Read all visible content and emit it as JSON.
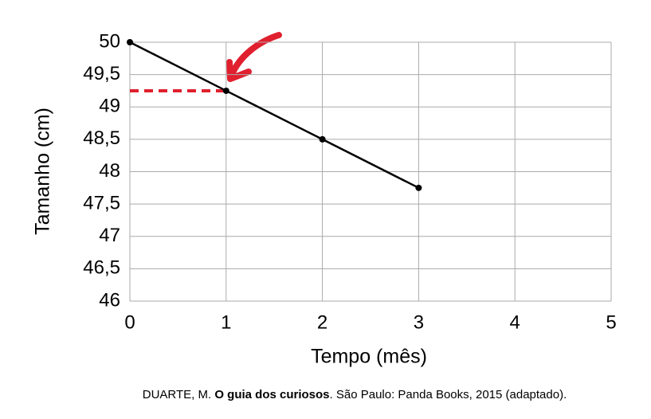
{
  "chart_data": {
    "type": "line",
    "x_label": "Tempo (mês)",
    "y_label": "Tamanho (cm)",
    "series": [
      {
        "name": "Tamanho",
        "color": "#000000",
        "x": [
          0,
          1,
          2,
          3
        ],
        "values": [
          50,
          49.25,
          48.5,
          47.75
        ]
      }
    ],
    "xlim": [
      0,
      5
    ],
    "xticks": [
      0,
      1,
      2,
      3,
      4,
      5
    ],
    "ylim": [
      46,
      50
    ],
    "yticks": [
      46,
      {
        "value": 46.5,
        "label": "46,5"
      },
      47,
      {
        "value": 47.5,
        "label": "47,5"
      },
      48,
      {
        "value": 48.5,
        "label": "48,5"
      },
      49,
      {
        "value": 49.5,
        "label": "49,5"
      },
      50
    ],
    "grid": true,
    "highlight": {
      "x": 1,
      "y": 49.25,
      "color": "#e0202e"
    }
  },
  "source": {
    "author": "DUARTE, M. ",
    "title": "O guia dos curiosos",
    "rest": ". São Paulo: Panda Books, 2015 (adaptado)."
  }
}
